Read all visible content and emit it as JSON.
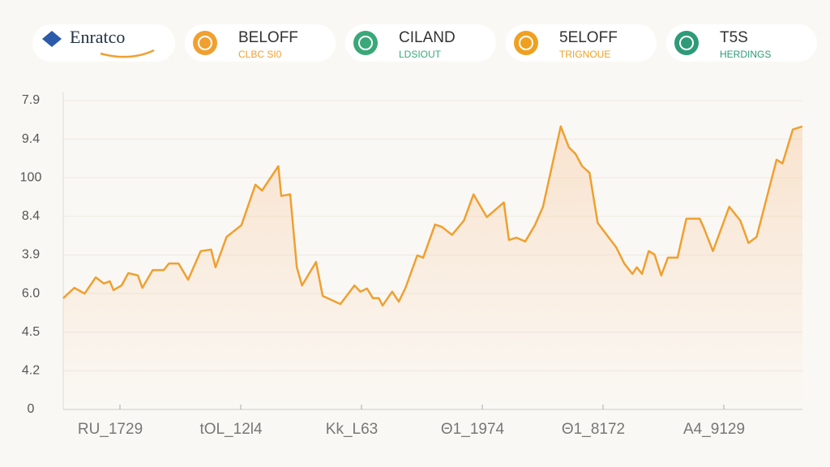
{
  "header": {
    "brand": "Enratco",
    "tickers": [
      {
        "name": "BELOFF",
        "sub": "CLBC SI0",
        "color": "#f0a030"
      },
      {
        "name": "CILAND",
        "sub": "LDSIOUT",
        "color": "#3aa878"
      },
      {
        "name": "5ELOFF",
        "sub": "TRIGNOUE",
        "color": "#f0a020"
      },
      {
        "name": "T5S",
        "sub": "HERDINGS",
        "color": "#2e9a78"
      }
    ]
  },
  "chart_data": {
    "type": "line",
    "color": "#efa030",
    "grid": true,
    "xlim": [
      0,
      100
    ],
    "ylim": [
      0,
      8
    ],
    "yticks": [
      {
        "value": 0,
        "label": "0"
      },
      {
        "value": 1,
        "label": "4.2"
      },
      {
        "value": 2,
        "label": "4.5"
      },
      {
        "value": 3,
        "label": "6.0"
      },
      {
        "value": 4,
        "label": "3.9"
      },
      {
        "value": 5,
        "label": "8.4"
      },
      {
        "value": 6,
        "label": "100"
      },
      {
        "value": 7,
        "label": "9.4"
      },
      {
        "value": 8,
        "label": "7.9"
      }
    ],
    "x_labels": [
      "RU_1729",
      "tOL_12l4",
      "Kk_L63",
      "Θ1_1974",
      "Θ1_8172",
      "A4_9129"
    ],
    "x": [
      0,
      1.5,
      2.9,
      4.4,
      5.5,
      6.3,
      6.8,
      7.9,
      8.8,
      10.1,
      10.7,
      12.1,
      13.6,
      14.3,
      15.6,
      16.9,
      18.6,
      20.0,
      20.6,
      22.1,
      24.1,
      26.0,
      26.9,
      29.1,
      29.5,
      30.7,
      31.6,
      32.3,
      34.2,
      35.1,
      37.5,
      39.4,
      40.2,
      41.1,
      41.9,
      42.7,
      43.2,
      44.5,
      45.4,
      46.3,
      47.9,
      48.7,
      50.3,
      51.2,
      52.6,
      54.2,
      55.5,
      57.3,
      59.6,
      60.3,
      61.3,
      62.5,
      63.8,
      64.9,
      67.3,
      68.4,
      69.3,
      70.2,
      71.2,
      72.3,
      74.8,
      75.9,
      77.0,
      77.6,
      78.3,
      79.2,
      80.0,
      80.9,
      81.8,
      83.1,
      84.3,
      86.1,
      86.6,
      87.9,
      90.1,
      91.6,
      92.7,
      93.8,
      96.5,
      97.3,
      98.7,
      100
    ],
    "values": [
      2.88,
      3.15,
      3.0,
      3.42,
      3.26,
      3.32,
      3.09,
      3.21,
      3.53,
      3.47,
      3.15,
      3.61,
      3.61,
      3.78,
      3.78,
      3.36,
      4.1,
      4.14,
      3.68,
      4.47,
      4.77,
      5.82,
      5.67,
      6.3,
      5.53,
      5.57,
      3.68,
      3.21,
      3.82,
      2.94,
      2.73,
      3.21,
      3.05,
      3.13,
      2.88,
      2.88,
      2.69,
      3.05,
      2.79,
      3.15,
      3.99,
      3.93,
      4.79,
      4.73,
      4.52,
      4.89,
      5.57,
      4.98,
      5.36,
      4.39,
      4.45,
      4.35,
      4.77,
      5.25,
      7.33,
      6.79,
      6.62,
      6.3,
      6.13,
      4.83,
      4.2,
      3.78,
      3.51,
      3.68,
      3.51,
      4.1,
      4.01,
      3.47,
      3.93,
      3.93,
      4.94,
      4.94,
      4.73,
      4.1,
      5.25,
      4.89,
      4.31,
      4.47,
      6.47,
      6.37,
      7.25,
      7.33
    ]
  }
}
